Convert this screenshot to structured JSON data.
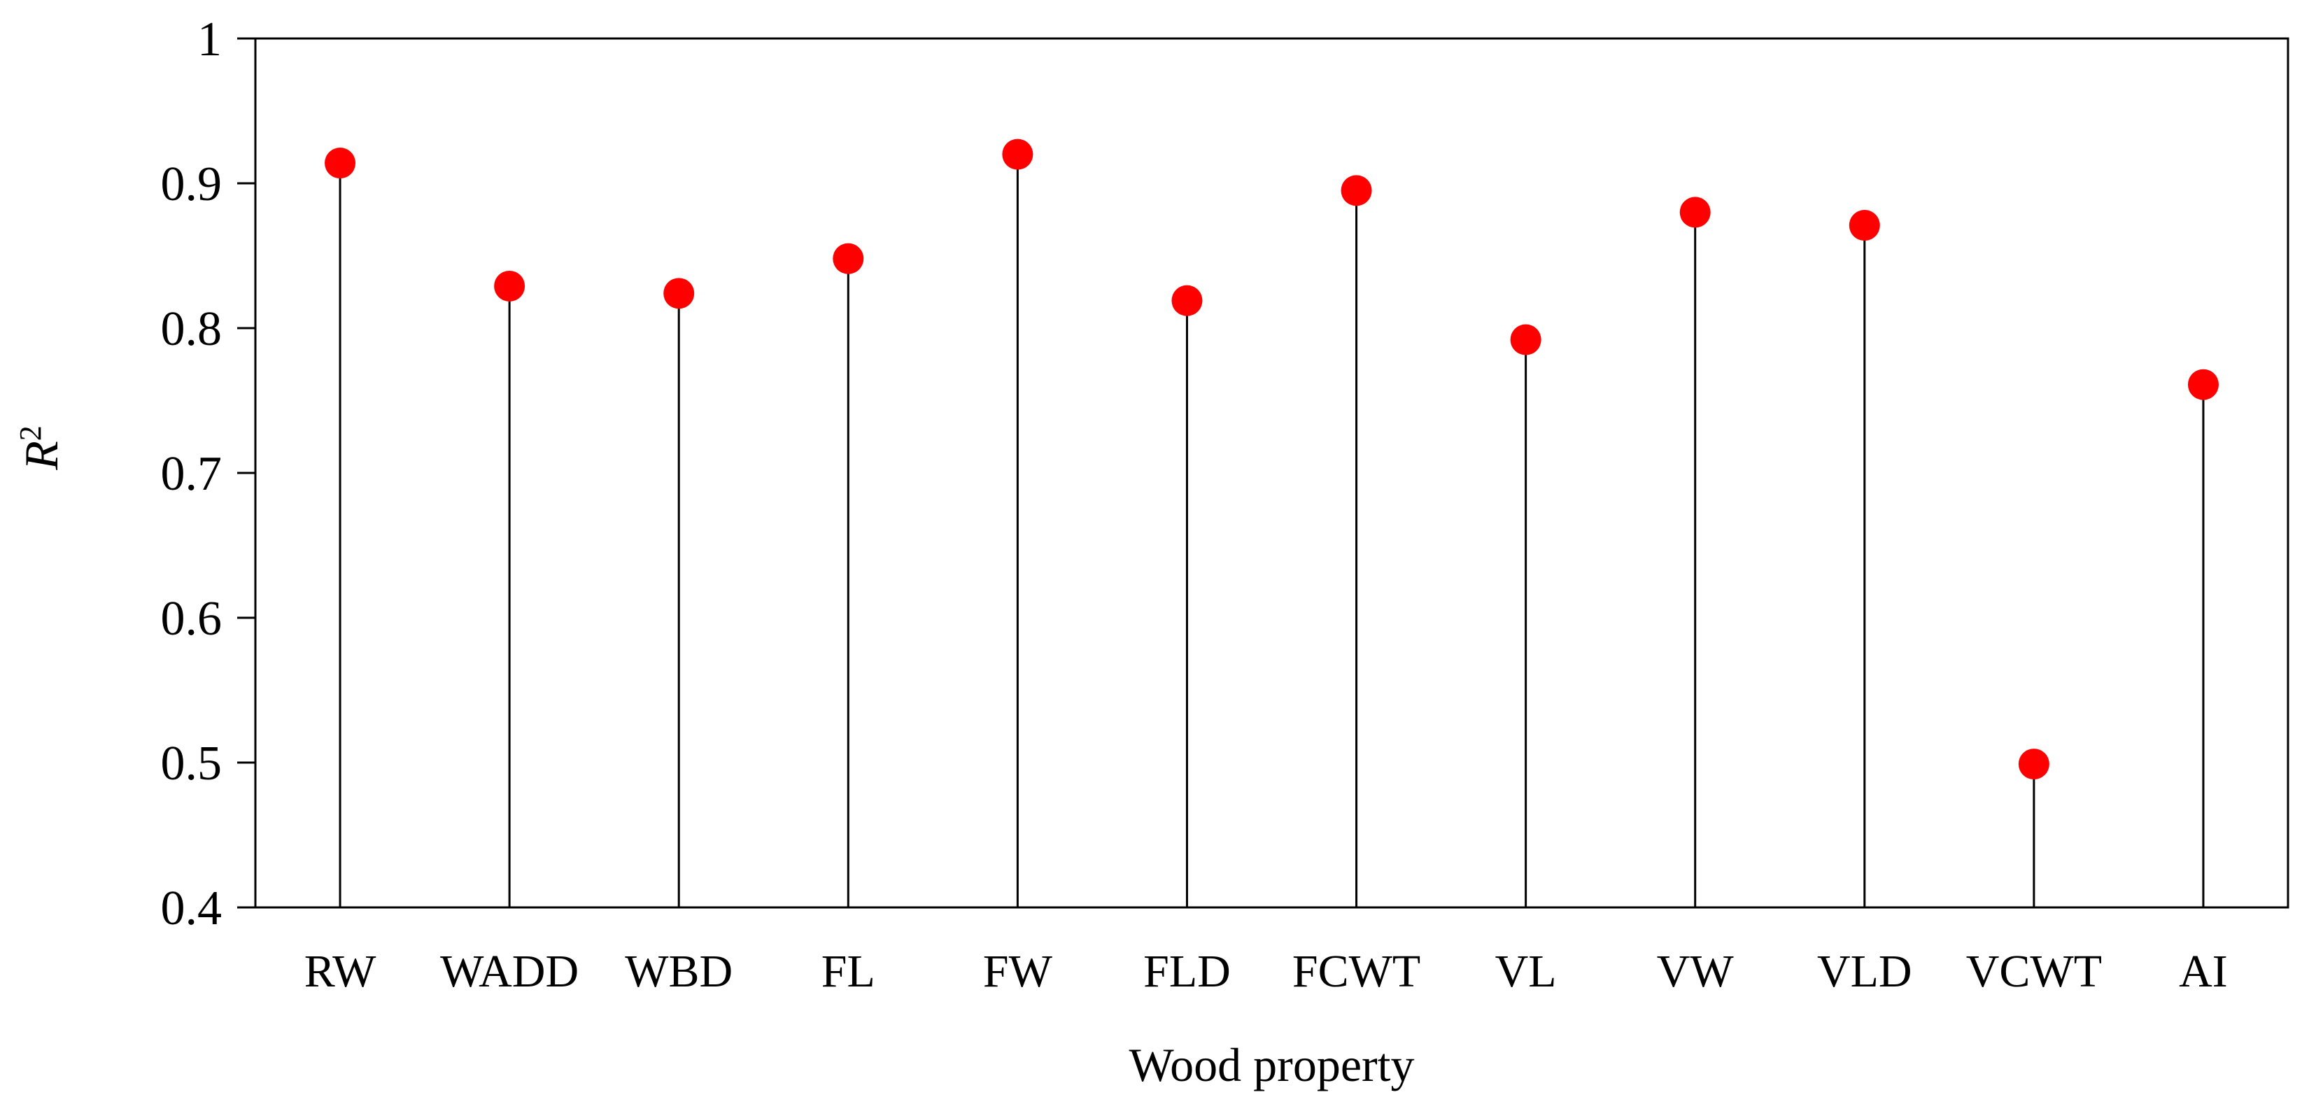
{
  "chart_data": {
    "type": "lollipop",
    "title": "",
    "xlabel": "Wood property",
    "ylabel": {
      "base": "R",
      "superscript": "2"
    },
    "ylim": [
      0.4,
      1.0
    ],
    "yticks": [
      "0.4",
      "0.5",
      "0.6",
      "0.7",
      "0.8",
      "0.9",
      "1"
    ],
    "grid": false,
    "legend": "none",
    "categories": [
      "RW",
      "WADD",
      "WBD",
      "FL",
      "FW",
      "FLD",
      "FCWT",
      "VL",
      "VW",
      "VLD",
      "VCWT",
      "AI"
    ],
    "values": [
      0.914,
      0.829,
      0.824,
      0.848,
      0.92,
      0.819,
      0.895,
      0.792,
      0.88,
      0.871,
      0.499,
      0.761
    ],
    "colors": {
      "marker": "#ff0000",
      "stem": "#000000",
      "axis": "#000000"
    }
  }
}
